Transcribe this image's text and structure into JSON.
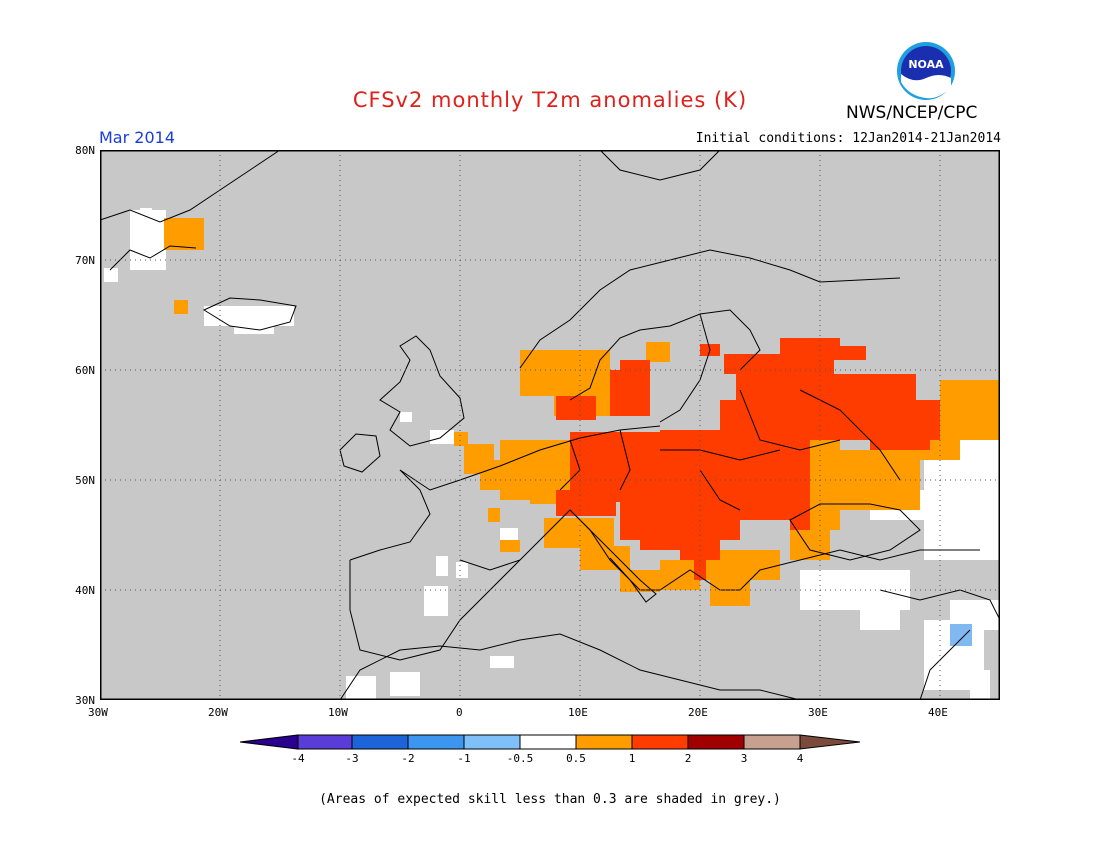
{
  "header": {
    "title": "CFSv2 monthly T2m anomalies (K)",
    "month": "Mar 2014",
    "initial_conditions": "Initial conditions: 12Jan2014-21Jan2014",
    "agency": "NWS/NCEP/CPC",
    "logo_text": "NOAA"
  },
  "map": {
    "lon_range": [
      -30,
      45
    ],
    "lat_range": [
      30,
      80
    ],
    "x_ticks": [
      "30W",
      "20W",
      "10W",
      "0",
      "10E",
      "20E",
      "30E",
      "40E"
    ],
    "y_ticks": [
      "80N",
      "70N",
      "60N",
      "50N",
      "40N",
      "30N"
    ],
    "colors": {
      "low_skill": "#c8c8c8",
      "neutral": "#ffffff",
      "warm_0_5_1": "#ff9c00",
      "warm_1_2": "#ff3c00",
      "cool_-1_-0_5": "#80b8f0",
      "border": "#000000"
    }
  },
  "colorbar": {
    "labels": [
      "-4",
      "-3",
      "-2",
      "-1",
      "-0.5",
      "0.5",
      "1",
      "2",
      "3",
      "4"
    ],
    "colors": [
      "#2a0090",
      "#5a3cd6",
      "#1c64d8",
      "#3c96f0",
      "#80c0f8",
      "#ffffff",
      "#ff9c00",
      "#ff3c00",
      "#a00000",
      "#c8a090",
      "#7a4a3a"
    ]
  },
  "footer": {
    "note": "(Areas of expected skill less than 0.3 are shaded in grey.)"
  }
}
